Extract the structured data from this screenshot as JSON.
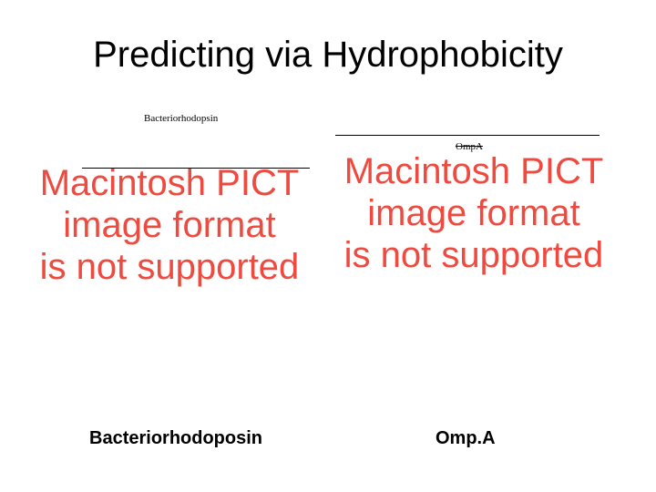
{
  "title": "Predicting via Hydrophobicity",
  "small_labels": {
    "left": "Bacteriorhodopsin",
    "right": "OmpA"
  },
  "placeholder": {
    "line1": "Macintosh PICT",
    "line2": "image format",
    "line3": "is not supported",
    "text_color": "#ef4a3f",
    "fontsize": 40
  },
  "bottom_labels": {
    "left": "Bacteriorhodoposin",
    "right": "Omp.A"
  },
  "background_color": "#ffffff",
  "title_color": "#000000"
}
